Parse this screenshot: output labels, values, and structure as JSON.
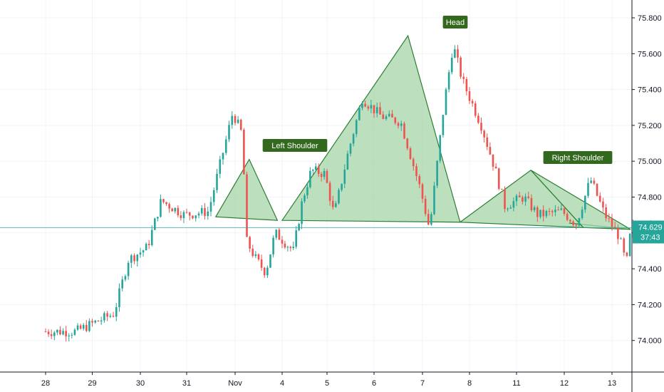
{
  "chart_data": {
    "type": "candlestick",
    "y_axis": {
      "ticks": [
        "74.000",
        "74.200",
        "74.400",
        "74.600",
        "74.800",
        "75.000",
        "75.200",
        "75.400",
        "75.600",
        "75.800"
      ],
      "ylim": [
        73.91,
        75.9
      ]
    },
    "x_axis": {
      "labels": [
        "28",
        "29",
        "30",
        "31",
        "Nov",
        "4",
        "5",
        "6",
        "7",
        "8",
        "11",
        "12",
        "13"
      ]
    },
    "last_price": {
      "value": "74.629",
      "countdown": "37:43"
    },
    "annotations": [
      {
        "label": "Left Shoulder",
        "points": [
          [
            3.6,
            74.69
          ],
          [
            4.3,
            75.01
          ],
          [
            4.9,
            74.67
          ]
        ]
      },
      {
        "label": "Head",
        "points": [
          [
            5.0,
            74.67
          ],
          [
            7.7,
            75.7
          ],
          [
            8.8,
            74.66
          ]
        ]
      },
      {
        "label": "Right Shoulder",
        "points": [
          [
            8.8,
            74.66
          ],
          [
            10.3,
            74.95
          ],
          [
            11.4,
            74.63
          ]
        ]
      }
    ],
    "series_key_points": [
      [
        -0.3,
        74.05
      ],
      [
        0.5,
        74.15
      ],
      [
        0.8,
        74.45
      ],
      [
        1.2,
        74.52
      ],
      [
        1.5,
        74.78
      ],
      [
        2.0,
        74.7
      ],
      [
        2.5,
        74.72
      ],
      [
        2.8,
        75.05
      ],
      [
        3.0,
        75.27
      ],
      [
        3.2,
        75.15
      ],
      [
        3.3,
        74.55
      ],
      [
        3.5,
        74.45
      ],
      [
        3.7,
        74.38
      ],
      [
        3.9,
        74.6
      ],
      [
        4.1,
        74.55
      ],
      [
        4.3,
        74.5
      ],
      [
        4.5,
        74.78
      ],
      [
        4.7,
        74.95
      ],
      [
        5.0,
        74.93
      ],
      [
        5.2,
        74.7
      ],
      [
        5.5,
        75.05
      ],
      [
        5.8,
        75.35
      ],
      [
        6.2,
        75.25
      ],
      [
        6.6,
        75.22
      ],
      [
        7.0,
        74.85
      ],
      [
        7.2,
        74.62
      ],
      [
        7.5,
        75.3
      ],
      [
        7.7,
        75.65
      ],
      [
        7.9,
        75.45
      ],
      [
        8.3,
        75.2
      ],
      [
        8.6,
        74.95
      ],
      [
        8.8,
        74.75
      ],
      [
        9.2,
        74.8
      ],
      [
        9.5,
        74.7
      ],
      [
        10.0,
        74.72
      ],
      [
        10.3,
        74.65
      ],
      [
        10.6,
        74.9
      ],
      [
        10.9,
        74.7
      ],
      [
        11.2,
        74.58
      ],
      [
        11.35,
        74.42
      ],
      [
        11.45,
        74.63
      ]
    ],
    "colors": {
      "up": "#26a69a",
      "down": "#ef5350",
      "pattern_fill": "#a5d6a7",
      "pattern_stroke": "#2e7d32",
      "annotation_bg": "#33691e",
      "price_line": "#26a69a"
    }
  }
}
